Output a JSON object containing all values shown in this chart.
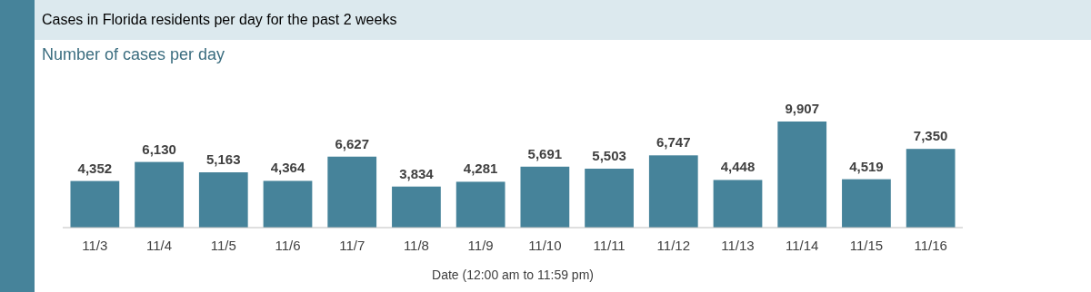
{
  "chart_data": {
    "type": "bar",
    "title": "Cases in Florida residents per day for the past 2 weeks",
    "subtitle": "Number of cases per day",
    "xlabel": "Date (12:00 am to 11:59 pm)",
    "categories": [
      "11/3",
      "11/4",
      "11/5",
      "11/6",
      "11/7",
      "11/8",
      "11/9",
      "11/10",
      "11/11",
      "11/12",
      "11/13",
      "11/14",
      "11/15",
      "11/16"
    ],
    "values": [
      4352,
      6130,
      5163,
      4364,
      6627,
      3834,
      4281,
      5691,
      5503,
      6747,
      4448,
      9907,
      4519,
      7350
    ],
    "value_labels": [
      "4,352",
      "6,130",
      "5,163",
      "4,364",
      "6,627",
      "3,834",
      "4,281",
      "5,691",
      "5,503",
      "6,747",
      "4,448",
      "9,907",
      "4,519",
      "7,350"
    ],
    "color": "#46839a"
  }
}
